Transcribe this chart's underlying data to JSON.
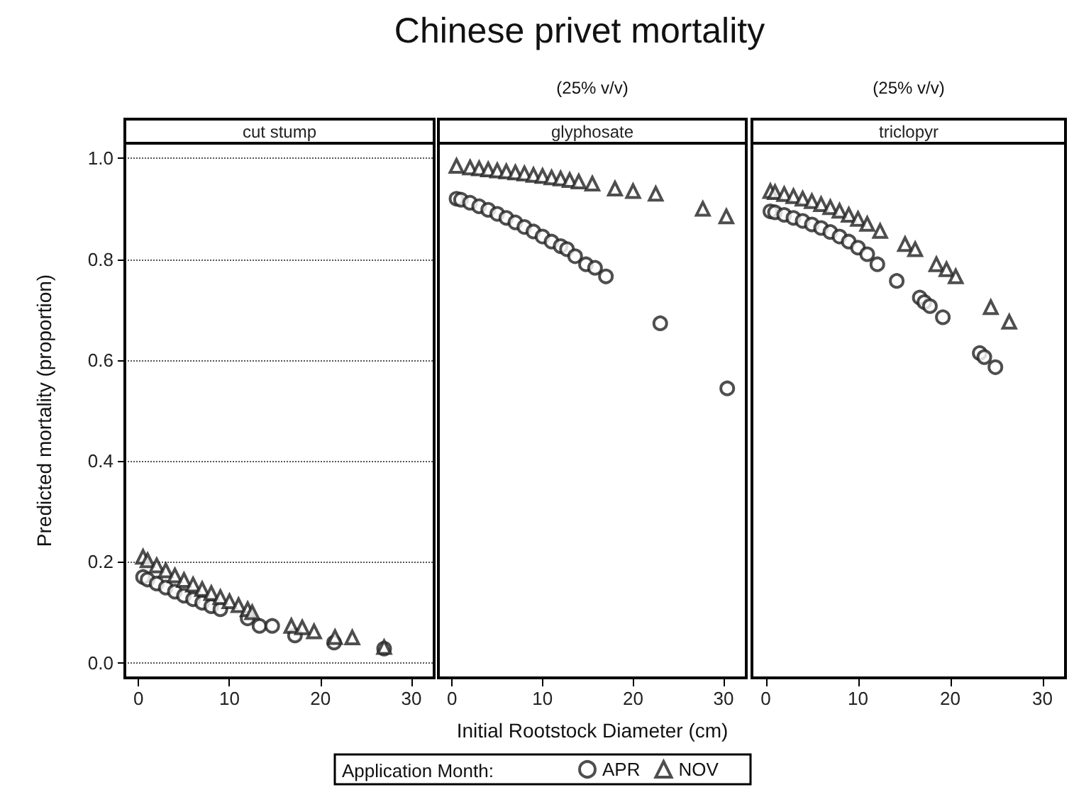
{
  "chart_data": [
    {
      "type": "scatter",
      "title": "cut stump",
      "annotations": [
        "Chinese privet mortality"
      ],
      "ylabel": "Predicted mortality (proportion)",
      "xlim": [
        -1.5,
        32.5
      ],
      "xticks": [
        0,
        10,
        20,
        30
      ],
      "ylim": [
        -0.03,
        1.03
      ],
      "yticks": [
        {
          "value": 0,
          "label": "0.0"
        },
        {
          "value": 0.2,
          "label": "0.2"
        },
        {
          "value": 0.4,
          "label": "0.4"
        },
        {
          "value": 0.6,
          "label": "0.6"
        },
        {
          "value": 0.8,
          "label": "0.8"
        },
        {
          "value": 1,
          "label": "1.0"
        }
      ],
      "grid": "y",
      "legend": false,
      "series": [
        {
          "color": "#222222",
          "marker": "circle",
          "x": [
            0.5,
            1,
            2,
            3,
            4,
            5,
            6,
            7,
            8,
            9,
            12,
            13.3,
            14.7,
            17.2,
            21.5,
            27
          ],
          "values": [
            0.17,
            0.165,
            0.157,
            0.149,
            0.141,
            0.133,
            0.126,
            0.119,
            0.112,
            0.106,
            0.088,
            0.073,
            0.073,
            0.054,
            0.04,
            0.028
          ]
        },
        {
          "color": "#222222",
          "marker": "triangle",
          "x": [
            0.5,
            1,
            2,
            3,
            4,
            5,
            6,
            7,
            8,
            9,
            10,
            11,
            12,
            12.5,
            16.8,
            18,
            19.3,
            21.6,
            23.5,
            27
          ],
          "values": [
            0.21,
            0.203,
            0.193,
            0.183,
            0.173,
            0.164,
            0.155,
            0.146,
            0.138,
            0.13,
            0.122,
            0.114,
            0.106,
            0.1,
            0.073,
            0.07,
            0.062,
            0.051,
            0.05,
            0.031
          ]
        }
      ]
    },
    {
      "type": "scatter",
      "title": "glyphosate",
      "subtitle": "(25% v/v)",
      "xlabel": "Initial Rootstock Diameter (cm)",
      "legend_title": "Application Month:",
      "xlim": [
        -1.5,
        32.5
      ],
      "xticks": [
        0,
        10,
        20,
        30
      ],
      "ylim": [
        -0.03,
        1.03
      ],
      "tick_labels": "x",
      "grid": "y",
      "legend": "bottom",
      "series": [
        {
          "name": "APR",
          "color": "#222222",
          "marker": "circle",
          "x": [
            0.5,
            1,
            2,
            3,
            4,
            5,
            6,
            7,
            8,
            9,
            10,
            11,
            12,
            12.7,
            13.6,
            14.8,
            15.8,
            17,
            23,
            30.4
          ],
          "values": [
            0.92,
            0.918,
            0.912,
            0.905,
            0.898,
            0.89,
            0.882,
            0.873,
            0.864,
            0.855,
            0.845,
            0.835,
            0.826,
            0.82,
            0.806,
            0.79,
            0.783,
            0.766,
            0.673,
            0.544
          ]
        },
        {
          "name": "NOV",
          "color": "#222222",
          "marker": "triangle",
          "x": [
            0.5,
            2,
            3,
            4,
            5,
            6,
            7,
            8,
            9,
            10,
            11,
            12,
            13,
            14,
            15.5,
            18,
            20,
            22.5,
            27.7,
            30.3
          ],
          "values": [
            0.985,
            0.982,
            0.98,
            0.978,
            0.976,
            0.974,
            0.972,
            0.97,
            0.967,
            0.965,
            0.962,
            0.96,
            0.957,
            0.954,
            0.95,
            0.94,
            0.935,
            0.93,
            0.9,
            0.885
          ]
        }
      ]
    },
    {
      "type": "scatter",
      "title": "triclopyr",
      "subtitle": "(25% v/v)",
      "xlim": [
        -1.5,
        32.5
      ],
      "xticks": [
        0,
        10,
        20,
        30
      ],
      "ylim": [
        -0.03,
        1.03
      ],
      "tick_labels": "x",
      "grid": "y",
      "legend": false,
      "series": [
        {
          "color": "#222222",
          "marker": "circle",
          "x": [
            0.5,
            1,
            2,
            3,
            4,
            5,
            6,
            7,
            8,
            9,
            10,
            11,
            12.1,
            14.2,
            16.7,
            17.2,
            17.8,
            19.2,
            23.2,
            23.7,
            24.9
          ],
          "values": [
            0.895,
            0.893,
            0.888,
            0.882,
            0.876,
            0.869,
            0.862,
            0.854,
            0.845,
            0.835,
            0.823,
            0.81,
            0.79,
            0.757,
            0.724,
            0.715,
            0.707,
            0.685,
            0.614,
            0.606,
            0.586
          ]
        },
        {
          "color": "#222222",
          "marker": "triangle",
          "x": [
            0.5,
            1,
            2,
            3,
            4,
            5,
            6,
            7,
            8,
            9,
            10,
            11,
            12.4,
            15.1,
            16.2,
            18.5,
            19.6,
            20.6,
            24.4,
            26.4
          ],
          "values": [
            0.935,
            0.933,
            0.929,
            0.925,
            0.92,
            0.915,
            0.909,
            0.903,
            0.896,
            0.888,
            0.88,
            0.87,
            0.856,
            0.83,
            0.82,
            0.79,
            0.78,
            0.766,
            0.705,
            0.676
          ]
        }
      ]
    }
  ]
}
